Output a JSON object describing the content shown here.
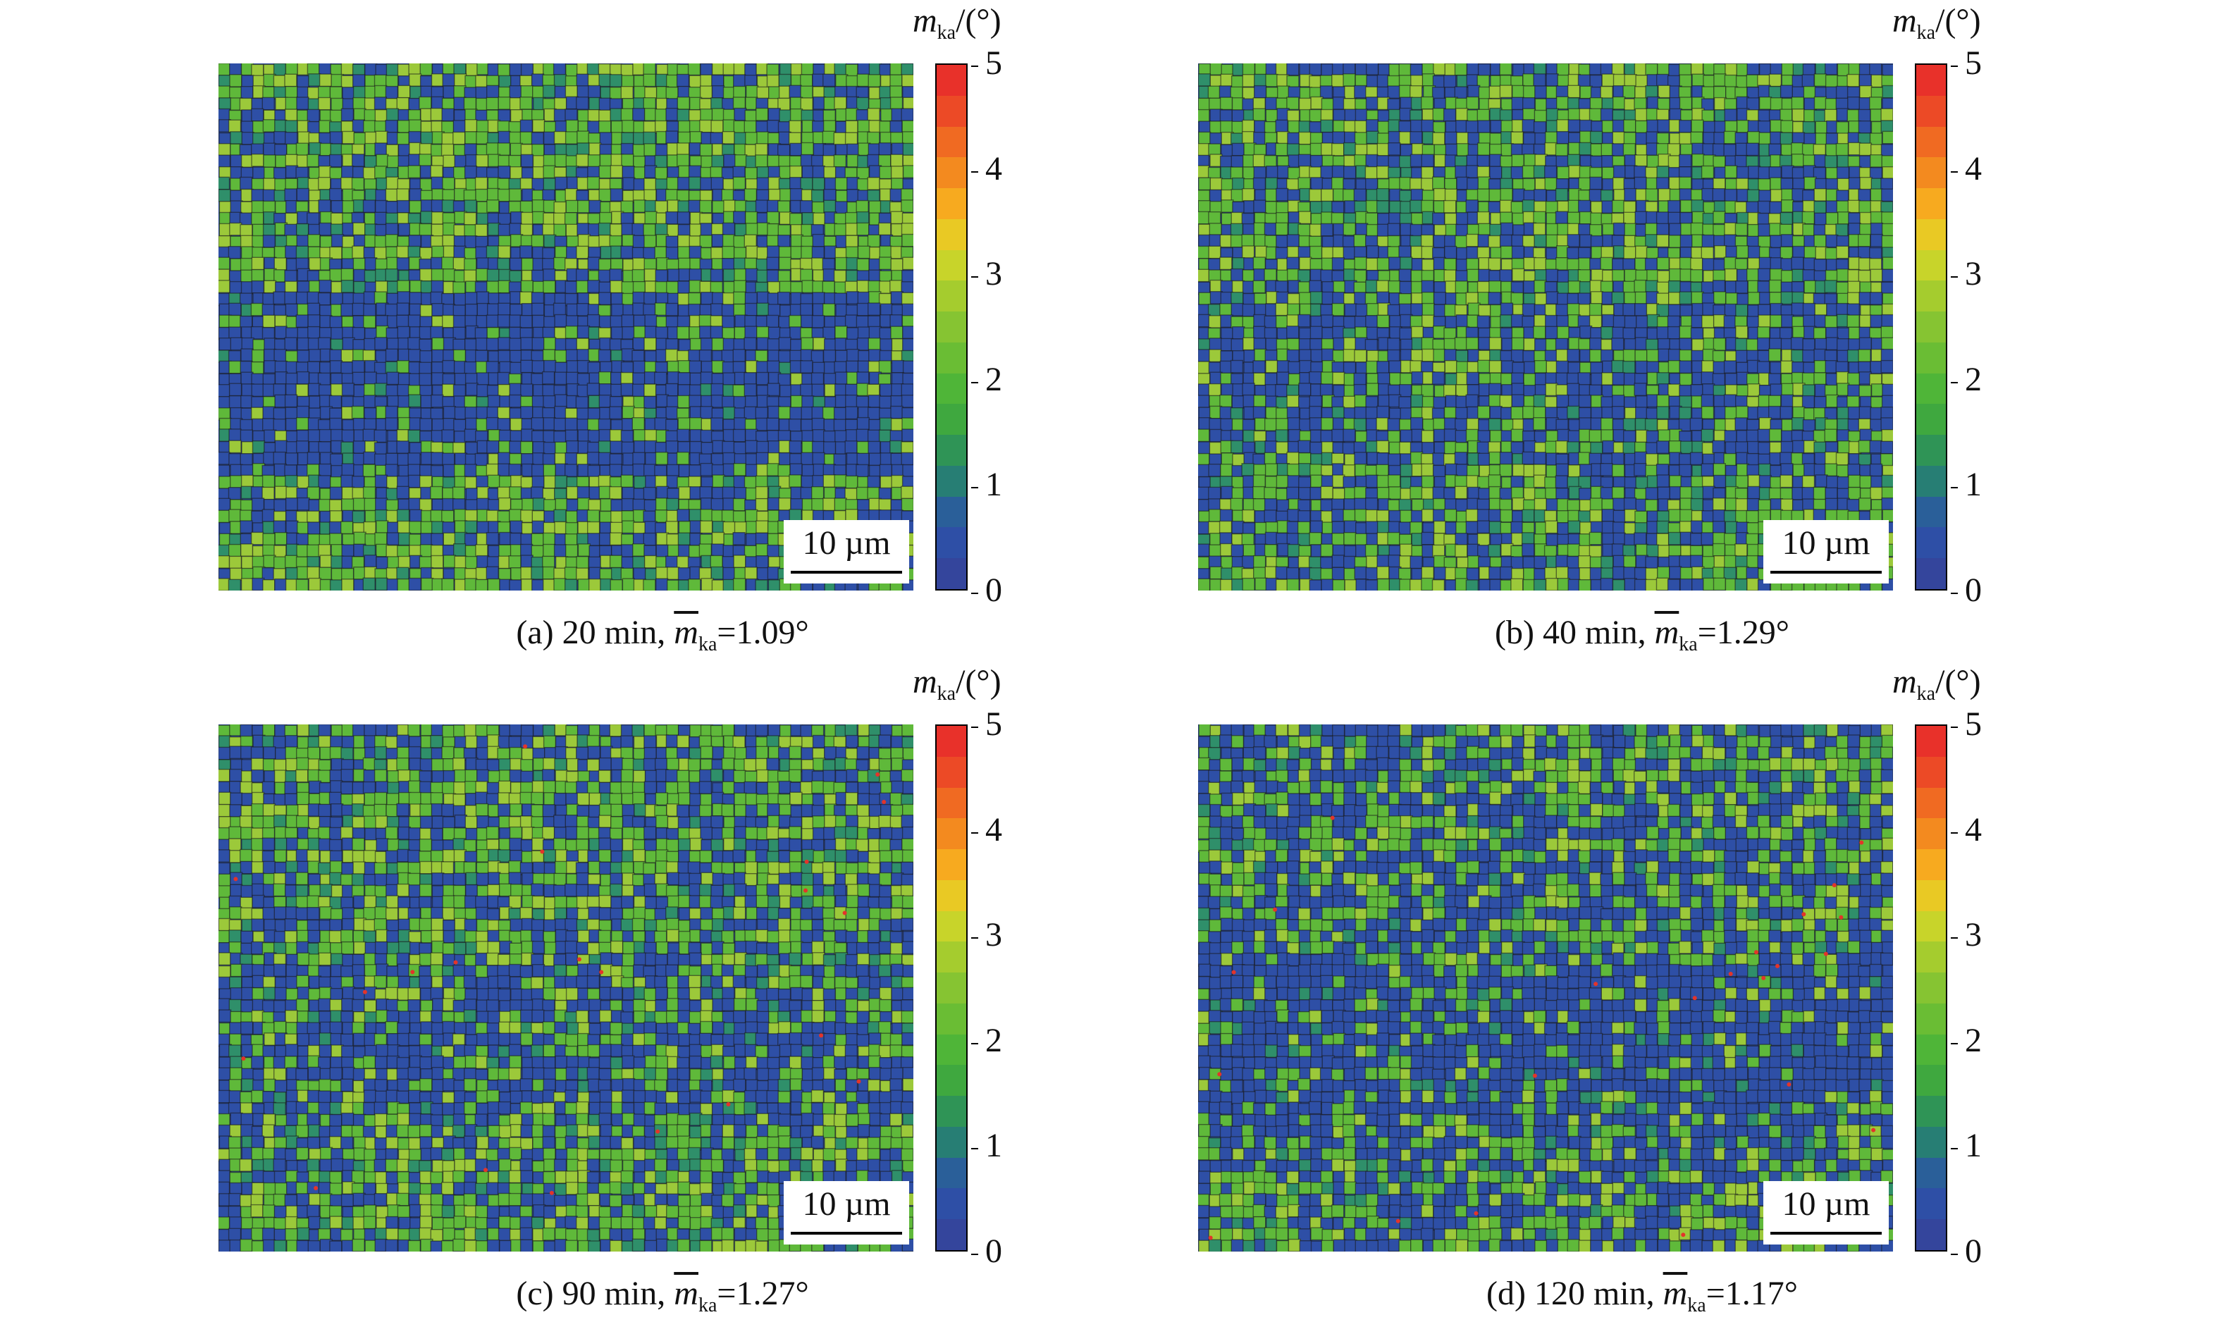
{
  "figure": {
    "panels": [
      {
        "id": "a",
        "caption_prefix": "(a) 20 min, ",
        "value_text": "=1.09°",
        "pattern": "banded"
      },
      {
        "id": "b",
        "caption_prefix": "(b) 40 min, ",
        "value_text": "=1.29°",
        "pattern": "mixed"
      },
      {
        "id": "c",
        "caption_prefix": "(c) 90 min, ",
        "value_text": "=1.27°",
        "pattern": "mixed"
      },
      {
        "id": "d",
        "caption_prefix": "(d) 120 min, ",
        "value_text": "=1.17°",
        "pattern": "mixed"
      }
    ],
    "symbol_main": "m",
    "symbol_sub": "ka",
    "colorbar_unit": "/(°)",
    "colorbar_ticks": [
      "5",
      "4",
      "3",
      "2",
      "1",
      "0"
    ],
    "colorbar_colors": [
      "#e8312a",
      "#ec4a26",
      "#f06a22",
      "#f38a1f",
      "#f7aa1f",
      "#e9c924",
      "#c8d42a",
      "#a5cc2e",
      "#86c432",
      "#6abd34",
      "#4fb538",
      "#3fa83f",
      "#2f9456",
      "#277e74",
      "#2a5f99",
      "#2e4fa6",
      "#34459c"
    ],
    "scale_bar_label": "10 µm",
    "map_colors": {
      "blue": "#2e4fa6",
      "green": "#5fb93a",
      "light_green": "#9cc93a",
      "teal": "#2f8f6a",
      "boundary": "#1a1a1a",
      "red_spot": "#e3342a"
    }
  }
}
